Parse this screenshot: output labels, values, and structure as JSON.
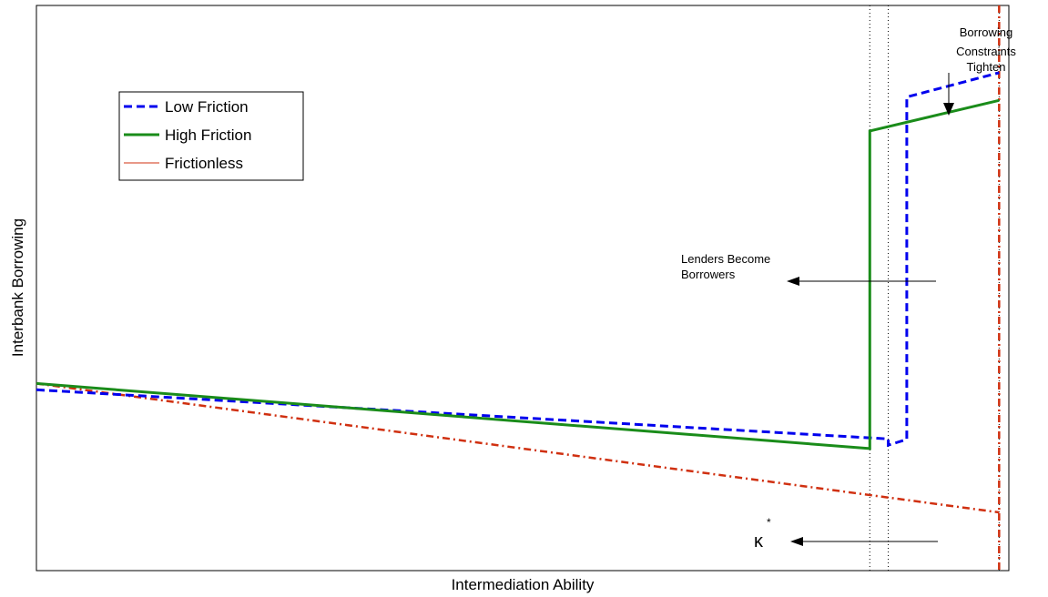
{
  "chart_data": {
    "type": "line",
    "xlabel": "Intermediation Ability",
    "ylabel": "Interbank Borrowing",
    "xlim": [
      0,
      1
    ],
    "ylim": [
      0,
      1
    ],
    "grid": false,
    "ticks": false,
    "legend_position": "top-left",
    "series": [
      {
        "name": "Low Friction",
        "style": "dashed",
        "color": "#0000ee",
        "points": [
          [
            0,
            0.32
          ],
          [
            0.876,
            0.233
          ],
          [
            0.876,
            0.222
          ],
          [
            0.895,
            0.232
          ],
          [
            0.895,
            0.838
          ],
          [
            0.99,
            0.881
          ]
        ]
      },
      {
        "name": "High Friction",
        "style": "solid",
        "color": "#1a8c1a",
        "points": [
          [
            0,
            0.331
          ],
          [
            0.857,
            0.216
          ],
          [
            0.857,
            0.778
          ],
          [
            0.99,
            0.832
          ]
        ]
      },
      {
        "name": "Frictionless",
        "style": "dash-dot",
        "color": "#d03010",
        "points": [
          [
            0,
            0.331
          ],
          [
            0.99,
            0.103
          ]
        ]
      }
    ],
    "vertical_lines": [
      {
        "x": 0.857,
        "style": "dotted",
        "color": "#000000"
      },
      {
        "x": 0.876,
        "style": "dotted",
        "color": "#000000"
      },
      {
        "x": 0.99,
        "style": "dotted",
        "color": "#000000"
      },
      {
        "x": 0.99,
        "style": "dash-dot",
        "color": "#d03010"
      }
    ],
    "annotations": [
      {
        "id": "constraints",
        "text_lines": [
          "Borrowing",
          "Constraints",
          "Tighten"
        ]
      },
      {
        "id": "lenders",
        "text_lines": [
          "Lenders Become",
          "Borrowers"
        ]
      },
      {
        "id": "kappa",
        "symbol": "κ",
        "superscript": "*"
      }
    ]
  }
}
